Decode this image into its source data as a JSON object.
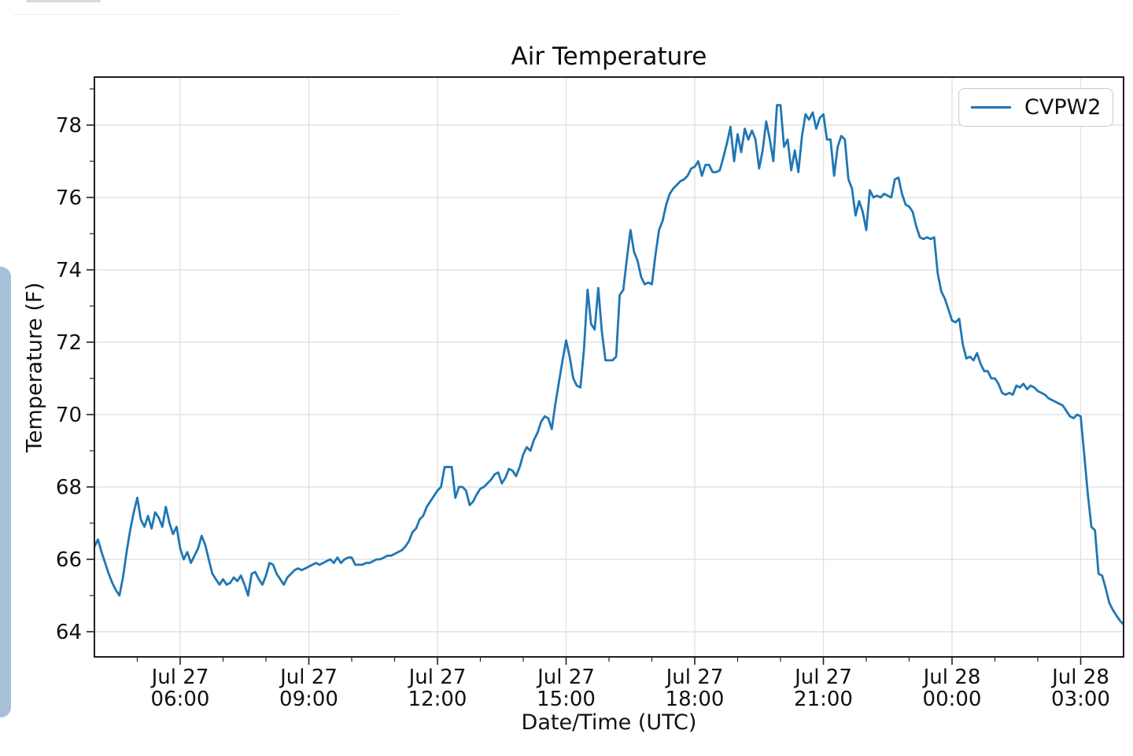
{
  "page": {
    "background_color": "#ffffff",
    "top_bar_color": "#d9d9d9",
    "divider_color": "#ededed",
    "scrollbar_color": "#a6c0d8"
  },
  "chart": {
    "title": "Air Temperature",
    "xlabel": "Date/Time (UTC)",
    "ylabel": "Temperature (F)",
    "legend": {
      "label": "CVPW2"
    }
  },
  "chart_data": {
    "type": "line",
    "title": "Air Temperature",
    "xlabel": "Date/Time (UTC)",
    "ylabel": "Temperature (F)",
    "grid": true,
    "legend_position": "upper right",
    "line_color": "#1f77b4",
    "grid_color": "#e2e2e2",
    "spine_color": "#1f1f1f",
    "x_start": "Jul 27 04:00 UTC",
    "x_end": "Jul 28 04:00 UTC",
    "x_step_minutes": 5,
    "x_span_hours": 24,
    "ylim": [
      63.3,
      79.35
    ],
    "y_ticks": [
      64,
      66,
      68,
      70,
      72,
      74,
      76,
      78
    ],
    "y_minor_ticks": [
      65,
      67,
      69,
      71,
      73,
      75,
      77,
      79
    ],
    "x_ticks": [
      {
        "hour_offset": 2,
        "line1": "Jul 27",
        "line2": "06:00"
      },
      {
        "hour_offset": 5,
        "line1": "Jul 27",
        "line2": "09:00"
      },
      {
        "hour_offset": 8,
        "line1": "Jul 27",
        "line2": "12:00"
      },
      {
        "hour_offset": 11,
        "line1": "Jul 27",
        "line2": "15:00"
      },
      {
        "hour_offset": 14,
        "line1": "Jul 27",
        "line2": "18:00"
      },
      {
        "hour_offset": 17,
        "line1": "Jul 27",
        "line2": "21:00"
      },
      {
        "hour_offset": 20,
        "line1": "Jul 28",
        "line2": "00:00"
      },
      {
        "hour_offset": 23,
        "line1": "Jul 28",
        "line2": "03:00"
      }
    ],
    "x_minor_tick_hour_offsets": [
      1,
      3,
      4,
      6,
      7,
      9,
      10,
      12,
      13,
      15,
      16,
      18,
      19,
      21,
      22
    ],
    "series": [
      {
        "name": "CVPW2",
        "color": "#1f77b4",
        "values": [
          66.35,
          66.55,
          66.2,
          65.9,
          65.6,
          65.35,
          65.15,
          65.0,
          65.5,
          66.2,
          66.8,
          67.3,
          67.7,
          67.1,
          66.9,
          67.2,
          66.85,
          67.3,
          67.15,
          66.9,
          67.45,
          67.0,
          66.7,
          66.9,
          66.3,
          66.0,
          66.2,
          65.9,
          66.1,
          66.3,
          66.65,
          66.4,
          66.0,
          65.6,
          65.45,
          65.3,
          65.45,
          65.3,
          65.35,
          65.5,
          65.4,
          65.55,
          65.3,
          65.0,
          65.6,
          65.65,
          65.45,
          65.3,
          65.55,
          65.9,
          65.85,
          65.6,
          65.45,
          65.3,
          65.5,
          65.6,
          65.7,
          65.75,
          65.7,
          65.75,
          65.8,
          65.85,
          65.9,
          65.85,
          65.9,
          65.95,
          66.0,
          65.9,
          66.05,
          65.9,
          66.0,
          66.05,
          66.05,
          65.85,
          65.85,
          65.85,
          65.9,
          65.9,
          65.95,
          66.0,
          66.0,
          66.05,
          66.1,
          66.1,
          66.15,
          66.2,
          66.25,
          66.35,
          66.5,
          66.75,
          66.85,
          67.1,
          67.2,
          67.45,
          67.6,
          67.75,
          67.9,
          68.0,
          68.55,
          68.55,
          68.55,
          67.7,
          68.0,
          68.0,
          67.9,
          67.5,
          67.6,
          67.8,
          67.95,
          68.0,
          68.1,
          68.2,
          68.35,
          68.4,
          68.1,
          68.25,
          68.5,
          68.45,
          68.3,
          68.55,
          68.9,
          69.1,
          69.0,
          69.3,
          69.5,
          69.8,
          69.95,
          69.9,
          69.6,
          70.3,
          70.9,
          71.5,
          72.05,
          71.6,
          71.0,
          70.8,
          70.75,
          71.8,
          73.45,
          72.5,
          72.35,
          73.5,
          72.3,
          71.5,
          71.5,
          71.5,
          71.6,
          73.3,
          73.45,
          74.3,
          75.1,
          74.5,
          74.25,
          73.8,
          73.6,
          73.65,
          73.6,
          74.4,
          75.1,
          75.35,
          75.8,
          76.1,
          76.25,
          76.35,
          76.45,
          76.5,
          76.6,
          76.8,
          76.85,
          77.0,
          76.6,
          76.9,
          76.9,
          76.7,
          76.7,
          76.75,
          77.1,
          77.5,
          77.95,
          77.0,
          77.75,
          77.25,
          77.9,
          77.6,
          77.85,
          77.6,
          76.8,
          77.3,
          78.1,
          77.6,
          77.0,
          78.55,
          78.55,
          77.4,
          77.6,
          76.75,
          77.3,
          76.7,
          77.7,
          78.3,
          78.15,
          78.35,
          77.9,
          78.2,
          78.3,
          77.6,
          77.6,
          76.6,
          77.4,
          77.7,
          77.6,
          76.5,
          76.25,
          75.5,
          75.9,
          75.6,
          75.1,
          76.2,
          76.0,
          76.05,
          76.0,
          76.1,
          76.05,
          76.0,
          76.5,
          76.55,
          76.1,
          75.8,
          75.75,
          75.6,
          75.2,
          74.9,
          74.85,
          74.9,
          74.85,
          74.9,
          73.9,
          73.4,
          73.2,
          72.9,
          72.6,
          72.55,
          72.65,
          71.95,
          71.55,
          71.6,
          71.5,
          71.7,
          71.4,
          71.2,
          71.2,
          71.0,
          71.0,
          70.85,
          70.6,
          70.55,
          70.6,
          70.55,
          70.8,
          70.75,
          70.85,
          70.7,
          70.8,
          70.75,
          70.65,
          70.6,
          70.55,
          70.45,
          70.4,
          70.35,
          70.3,
          70.25,
          70.1,
          69.95,
          69.9,
          70.0,
          69.95,
          68.9,
          67.8,
          66.9,
          66.8,
          65.6,
          65.55,
          65.2,
          64.8,
          64.6,
          64.45,
          64.3,
          64.2
        ]
      }
    ]
  }
}
